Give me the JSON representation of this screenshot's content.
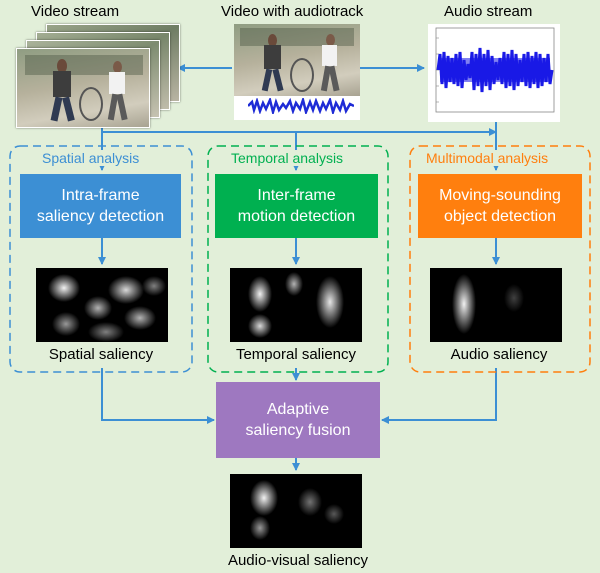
{
  "inputs": {
    "video_stream": "Video stream",
    "video_with_audio": "Video with audiotrack",
    "audio_stream": "Audio stream"
  },
  "groups": {
    "spatial": {
      "title": "Spatial analysis",
      "box": "Intra-frame saliency detection",
      "box_line1": "Intra-frame",
      "box_line2": "saliency detection",
      "output": "Spatial saliency",
      "color": "#3c8fd4"
    },
    "temporal": {
      "title": "Temporal analysis",
      "box": "Inter-frame motion detection",
      "box_line1": "Inter-frame",
      "box_line2": "motion detection",
      "output": "Temporal saliency",
      "color": "#00b050"
    },
    "multimodal": {
      "title": "Multimodal analysis",
      "box": "Moving-sounding object detection",
      "box_line1": "Moving-sounding",
      "box_line2": "object detection",
      "output": "Audio saliency",
      "color": "#ff7f0e"
    }
  },
  "fusion": {
    "line1": "Adaptive",
    "line2": "saliency fusion",
    "color": "#9e78c0"
  },
  "final_output": "Audio-visual saliency",
  "colors": {
    "arrow": "#3c8fd4",
    "background": "#e2efd9"
  }
}
